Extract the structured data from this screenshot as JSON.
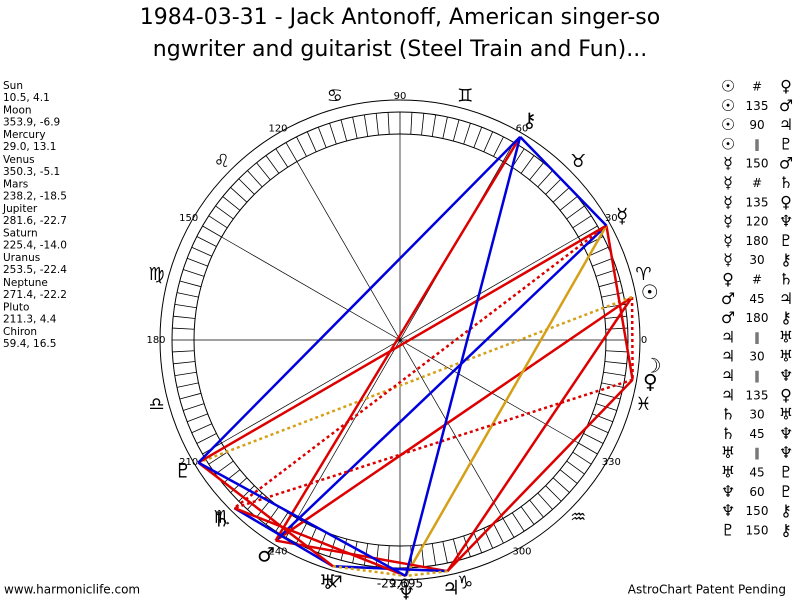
{
  "header": {
    "title_line1": "1984-03-31 - Jack Antonoff, American singer-so",
    "title_line2": "ngwriter and guitarist (Steel Train and Fun)..."
  },
  "planets": [
    {
      "name": "Sun",
      "position": "10.5, 4.1",
      "glyph": "☉"
    },
    {
      "name": "Moon",
      "position": "353.9, -6.9",
      "glyph": "☽"
    },
    {
      "name": "Mercury",
      "position": "29.0, 13.1",
      "glyph": "☿"
    },
    {
      "name": "Venus",
      "position": "350.3, -5.1",
      "glyph": "♀"
    },
    {
      "name": "Mars",
      "position": "238.2, -18.5",
      "glyph": "♂"
    },
    {
      "name": "Jupiter",
      "position": "281.6, -22.7",
      "glyph": "♃"
    },
    {
      "name": "Saturn",
      "position": "225.4, -14.0",
      "glyph": "♄"
    },
    {
      "name": "Uranus",
      "position": "253.5, -22.4",
      "glyph": "♅"
    },
    {
      "name": "Neptune",
      "position": "271.4, -22.2",
      "glyph": "♆"
    },
    {
      "name": "Pluto",
      "position": "211.3, 4.4",
      "glyph": "♇"
    },
    {
      "name": "Chiron",
      "position": "59.4, 16.5",
      "glyph": "⚷"
    }
  ],
  "degree_labels": [
    0,
    30,
    60,
    90,
    120,
    150,
    180,
    210,
    240,
    270,
    300,
    330
  ],
  "signs": [
    "♈",
    "♉",
    "♊",
    "♋",
    "♌",
    "♍",
    "♎",
    "♏",
    "♐",
    "♑",
    "♒",
    "♓"
  ],
  "aspects": [
    [
      "☉",
      "#",
      "♀"
    ],
    [
      "☉",
      "135",
      "♂"
    ],
    [
      "☉",
      "90",
      "♃"
    ],
    [
      "☉",
      "∥",
      "♇"
    ],
    [
      "☿",
      "150",
      "♂"
    ],
    [
      "☿",
      "#",
      "♄"
    ],
    [
      "☿",
      "135",
      "♀"
    ],
    [
      "☿",
      "120",
      "♆"
    ],
    [
      "☿",
      "180",
      "♇"
    ],
    [
      "☿",
      "30",
      "⚷"
    ],
    [
      "♀",
      "#",
      "♄"
    ],
    [
      "♂",
      "45",
      "♃"
    ],
    [
      "♂",
      "180",
      "⚷"
    ],
    [
      "♃",
      "∥",
      "♅"
    ],
    [
      "♃",
      "30",
      "♅"
    ],
    [
      "♃",
      "∥",
      "♆"
    ],
    [
      "♃",
      "135",
      "♀"
    ],
    [
      "♄",
      "30",
      "♅"
    ],
    [
      "♄",
      "45",
      "♆"
    ],
    [
      "♅",
      "∥",
      "♆"
    ],
    [
      "♅",
      "45",
      "♇"
    ],
    [
      "♆",
      "60",
      "♇"
    ],
    [
      "♆",
      "150",
      "⚷"
    ],
    [
      "♇",
      "150",
      "⚷"
    ]
  ],
  "footer": {
    "coordinate": "-29,695",
    "website": "www.harmoniclife.com",
    "notice": "AstroChart Patent Pending"
  }
}
